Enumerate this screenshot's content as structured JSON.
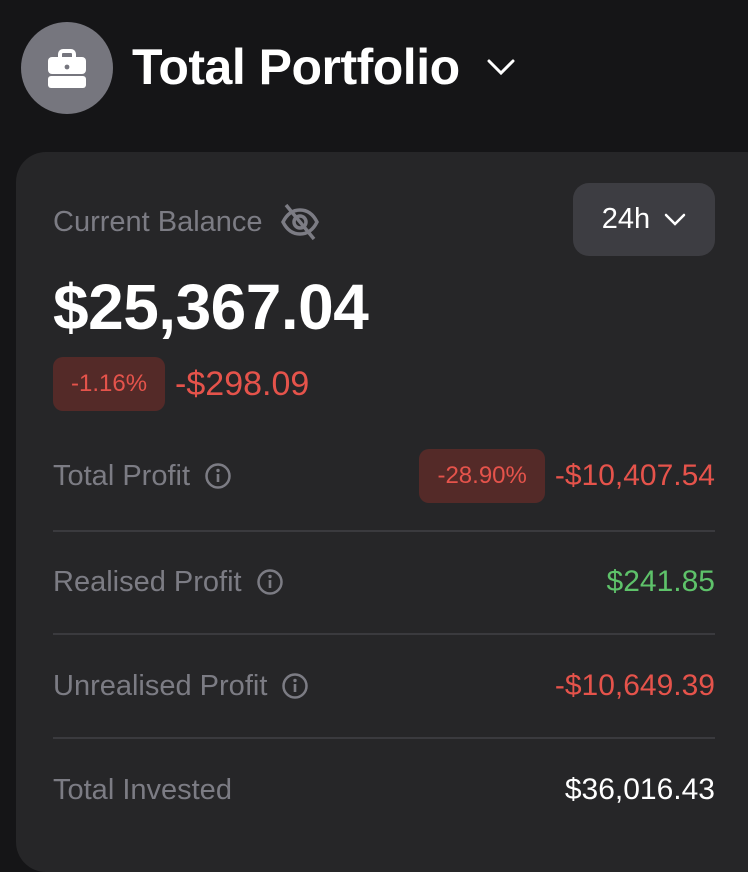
{
  "header": {
    "title": "Total Portfolio",
    "icon": "briefcase-icon"
  },
  "card": {
    "balance_label": "Current Balance",
    "period": "24h",
    "balance": "$25,367.04",
    "change_pct": "-1.16%",
    "change_value": "-$298.09",
    "rows": [
      {
        "label": "Total Profit",
        "pct": "-28.90%",
        "value": "-$10,407.54",
        "tone": "red",
        "info": true
      },
      {
        "label": "Realised Profit",
        "value": "$241.85",
        "tone": "green",
        "info": true
      },
      {
        "label": "Unrealised Profit",
        "value": "-$10,649.39",
        "tone": "red",
        "info": true
      },
      {
        "label": "Total Invested",
        "value": "$36,016.43",
        "tone": "white",
        "info": false
      }
    ]
  },
  "colors": {
    "negative": "#e5534b",
    "positive": "#5ec26a",
    "card": "#262628",
    "background": "#151517"
  }
}
